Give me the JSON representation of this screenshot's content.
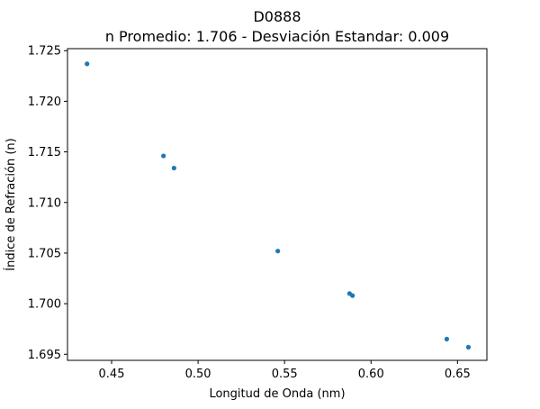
{
  "chart_data": {
    "type": "scatter",
    "title": "D0888",
    "subtitle": "n Promedio: 1.706 - Desviación Estandar: 0.009",
    "xlabel": "Longitud de Onda (nm)",
    "ylabel": "Índice de Refración (n)",
    "xlim": [
      0.4245,
      0.667
    ],
    "ylim": [
      1.6944,
      1.7252
    ],
    "x_ticks": [
      "0.45",
      "0.50",
      "0.55",
      "0.60",
      "0.65"
    ],
    "y_ticks": [
      "1.695",
      "1.700",
      "1.705",
      "1.710",
      "1.715",
      "1.720",
      "1.725"
    ],
    "grid": false,
    "marker_color": "#1f77b4",
    "series": [
      {
        "x": [
          0.4358,
          0.48,
          0.4861,
          0.5461,
          0.5876,
          0.5893,
          0.6438,
          0.6563
        ],
        "y": [
          1.7237,
          1.7146,
          1.7134,
          1.7052,
          1.701,
          1.7008,
          1.6965,
          1.6957
        ]
      }
    ]
  }
}
